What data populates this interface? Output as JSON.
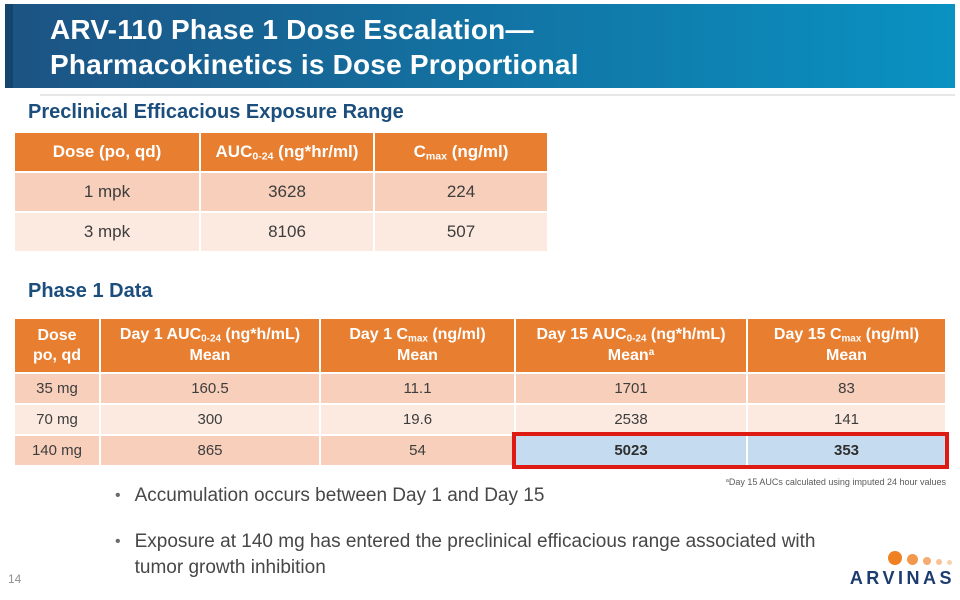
{
  "slide": {
    "title_line1": "ARV-110 Phase 1 Dose Escalation—",
    "title_line2": "Pharmacokinetics is Dose Proportional",
    "page_number": "14"
  },
  "sections": {
    "preclinical_heading": "Preclinical Efficacious Exposure Range",
    "phase1_heading": "Phase 1 Data"
  },
  "preclinical_table": {
    "headers": [
      {
        "text": "Dose (po, qd)"
      },
      {
        "pre": "AUC",
        "sub": "0-24",
        "post": " (ng*hr/ml)"
      },
      {
        "pre": "C",
        "sub": "max",
        "post": " (ng/ml)"
      }
    ],
    "rows": [
      [
        "1 mpk",
        "3628",
        "224"
      ],
      [
        "3 mpk",
        "8106",
        "507"
      ]
    ]
  },
  "phase1_table": {
    "headers": [
      {
        "line1": "Dose",
        "line2": "po, qd"
      },
      {
        "pre": "Day 1 AUC",
        "sub": "0-24",
        "post": " (ng*h/mL)",
        "line2": "Mean"
      },
      {
        "pre": "Day 1 C",
        "sub": "max",
        "post": " (ng/ml)",
        "line2": "Mean"
      },
      {
        "pre": "Day 15 AUC",
        "sub": "0-24",
        "post": " (ng*h/mL)",
        "line2": "Mean",
        "line2_sup": "a"
      },
      {
        "pre": "Day 15 C",
        "sub": "max",
        "post": " (ng/ml)",
        "line2": "Mean"
      }
    ],
    "rows": [
      [
        "35 mg",
        "160.5",
        "11.1",
        "1701",
        "83"
      ],
      [
        "70 mg",
        "300",
        "19.6",
        "2538",
        "141"
      ],
      [
        "140 mg",
        "865",
        "54",
        "5023",
        "353"
      ]
    ],
    "footnote": {
      "sup": "a",
      "text": "Day 15 AUCs calculated using imputed 24 hour values"
    }
  },
  "bullets": [
    {
      "text": "Accumulation occurs between Day 1 and Day 15"
    },
    {
      "text": "Exposure at 140 mg has entered the preclinical efficacious range associated with tumor growth inhibition"
    }
  ],
  "logo": {
    "text": "ARVINAS",
    "dot_colors": [
      "#f08122",
      "#f2974b",
      "#f4ac70",
      "#f7c295",
      "#f9d2b0"
    ]
  },
  "colors": {
    "banner_gradient_left": "#1c5383",
    "banner_gradient_right": "#0992c2",
    "heading_navy": "#1c4e7d",
    "table_header_orange": "#e87e2f",
    "row_dark": "#f7cfba",
    "row_light": "#fceae1",
    "highlight_blue": "#c5dcf0",
    "highlight_border_red": "#de1b12",
    "logo_navy": "#1d3c6e"
  }
}
